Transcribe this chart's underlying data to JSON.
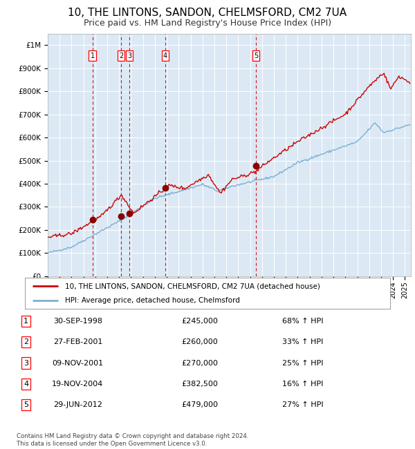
{
  "title": "10, THE LINTONS, SANDON, CHELMSFORD, CM2 7UA",
  "subtitle": "Price paid vs. HM Land Registry's House Price Index (HPI)",
  "title_fontsize": 11,
  "subtitle_fontsize": 9,
  "bg_color": "#dce9f5",
  "grid_color": "#ffffff",
  "hpi_color": "#7bafd4",
  "price_color": "#cc0000",
  "marker_color": "#880000",
  "vline_color": "#cc0000",
  "ylim": [
    0,
    1050000
  ],
  "yticks": [
    0,
    100000,
    200000,
    300000,
    400000,
    500000,
    600000,
    700000,
    800000,
    900000,
    1000000
  ],
  "ytick_labels": [
    "£0",
    "£100K",
    "£200K",
    "£300K",
    "£400K",
    "£500K",
    "£600K",
    "£700K",
    "£800K",
    "£900K",
    "£1M"
  ],
  "xlim_start": 1995.0,
  "xlim_end": 2025.5,
  "sale_dates_year": [
    1998.75,
    2001.16,
    2001.85,
    2004.88,
    2012.49
  ],
  "sale_prices": [
    245000,
    260000,
    270000,
    382500,
    479000
  ],
  "sale_labels": [
    "1",
    "2",
    "3",
    "4",
    "5"
  ],
  "legend_line1": "10, THE LINTONS, SANDON, CHELMSFORD, CM2 7UA (detached house)",
  "legend_line2": "HPI: Average price, detached house, Chelmsford",
  "table_entries": [
    {
      "num": "1",
      "date": "30-SEP-1998",
      "price": "£245,000",
      "hpi": "68% ↑ HPI"
    },
    {
      "num": "2",
      "date": "27-FEB-2001",
      "price": "£260,000",
      "hpi": "33% ↑ HPI"
    },
    {
      "num": "3",
      "date": "09-NOV-2001",
      "price": "£270,000",
      "hpi": "25% ↑ HPI"
    },
    {
      "num": "4",
      "date": "19-NOV-2004",
      "price": "£382,500",
      "hpi": "16% ↑ HPI"
    },
    {
      "num": "5",
      "date": "29-JUN-2012",
      "price": "£479,000",
      "hpi": "27% ↑ HPI"
    }
  ],
  "footer": "Contains HM Land Registry data © Crown copyright and database right 2024.\nThis data is licensed under the Open Government Licence v3.0."
}
